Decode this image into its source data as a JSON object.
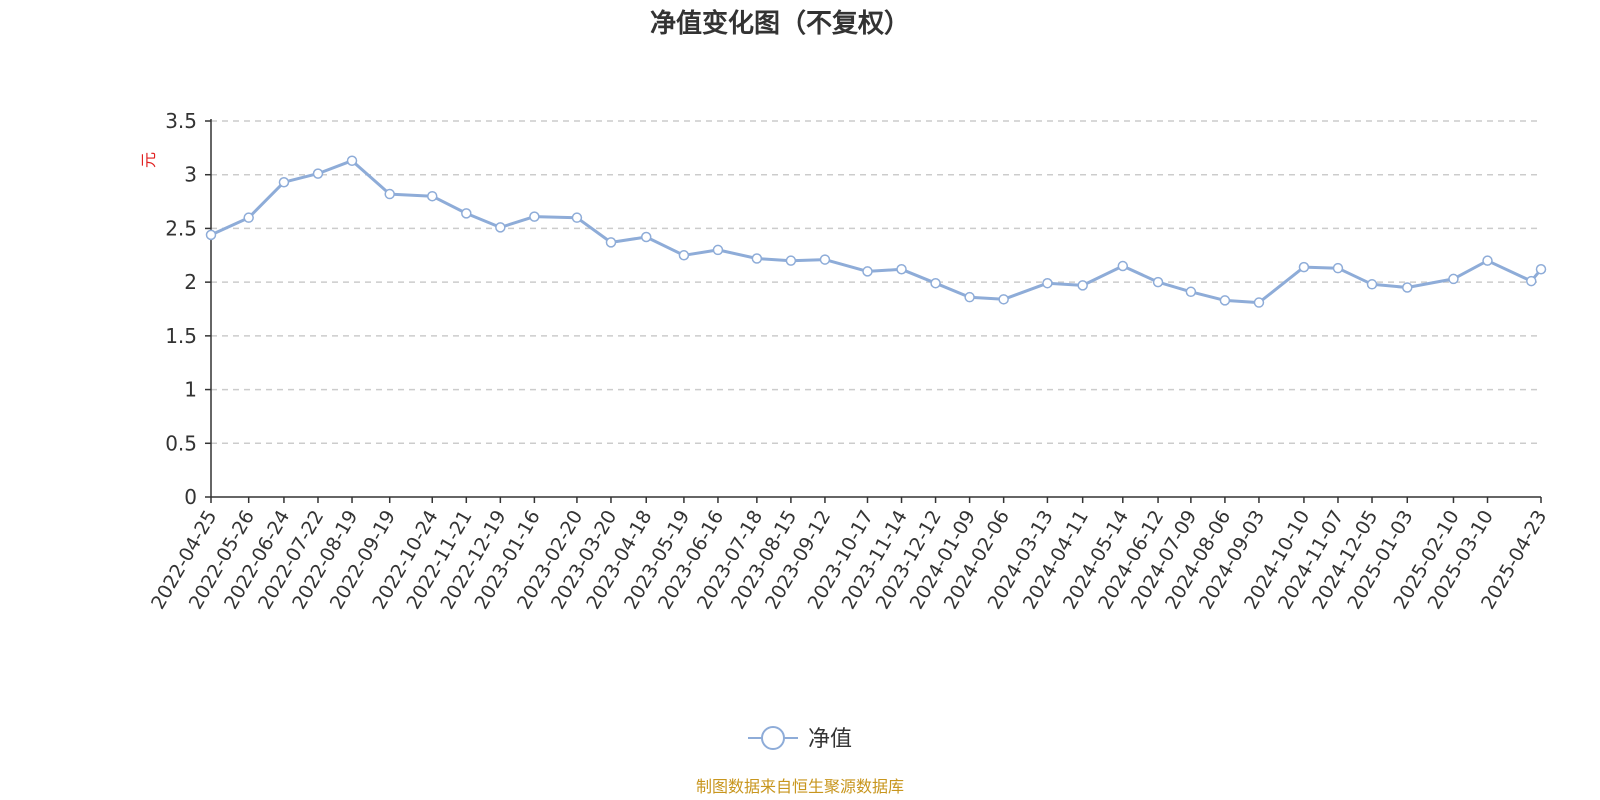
{
  "chart_data": {
    "type": "line",
    "title": "净值变化图（不复权）",
    "ylabel": "元",
    "ylim": [
      0,
      3.5
    ],
    "yticks": [
      "0",
      "0.5",
      "1",
      "1.5",
      "2",
      "2.5",
      "3",
      "3.5"
    ],
    "grid": true,
    "legend_position": "bottom-center",
    "x_tick_labels": [
      "2022-04-25",
      "2022-05-26",
      "2022-06-24",
      "2022-07-22",
      "2022-08-19",
      "2022-09-19",
      "2022-10-24",
      "2022-11-21",
      "2022-12-19",
      "2023-01-16",
      "2023-02-20",
      "2023-03-20",
      "2023-04-18",
      "2023-05-19",
      "2023-06-16",
      "2023-07-18",
      "2023-08-15",
      "2023-09-12",
      "2023-10-17",
      "2023-11-14",
      "2023-12-12",
      "2024-01-09",
      "2024-02-06",
      "2024-03-13",
      "2024-04-11",
      "2024-05-14",
      "2024-06-12",
      "2024-07-09",
      "2024-08-06",
      "2024-09-03",
      "2024-10-10",
      "2024-11-07",
      "2024-12-05",
      "2025-01-03",
      "2025-02-10",
      "2025-03-10",
      "2025-04-23"
    ],
    "series": [
      {
        "name": "净值",
        "color": "#8eacd8",
        "x": [
          "2022-04-25",
          "2022-05-26",
          "2022-06-24",
          "2022-07-22",
          "2022-08-19",
          "2022-09-19",
          "2022-10-24",
          "2022-11-21",
          "2022-12-19",
          "2023-01-16",
          "2023-02-20",
          "2023-03-20",
          "2023-04-18",
          "2023-05-19",
          "2023-06-16",
          "2023-07-18",
          "2023-08-15",
          "2023-09-12",
          "2023-10-17",
          "2023-11-14",
          "2023-12-12",
          "2024-01-09",
          "2024-02-06",
          "2024-03-13",
          "2024-04-11",
          "2024-05-14",
          "2024-06-12",
          "2024-07-09",
          "2024-08-06",
          "2024-09-03",
          "2024-10-10",
          "2024-11-07",
          "2024-12-05",
          "2025-01-03",
          "2025-02-10",
          "2025-03-10",
          "2025-04-15",
          "2025-04-23"
        ],
        "values": [
          2.44,
          2.6,
          2.93,
          3.01,
          3.13,
          2.82,
          2.8,
          2.64,
          2.51,
          2.61,
          2.6,
          2.37,
          2.42,
          2.25,
          2.3,
          2.22,
          2.2,
          2.21,
          2.1,
          2.12,
          1.99,
          1.86,
          1.84,
          1.99,
          1.97,
          2.15,
          2.0,
          1.91,
          1.83,
          1.81,
          2.14,
          2.13,
          1.98,
          1.95,
          2.03,
          2.2,
          2.01,
          2.12
        ]
      }
    ]
  },
  "legend": {
    "label": "净值"
  },
  "source": "制图数据来自恒生聚源数据库"
}
